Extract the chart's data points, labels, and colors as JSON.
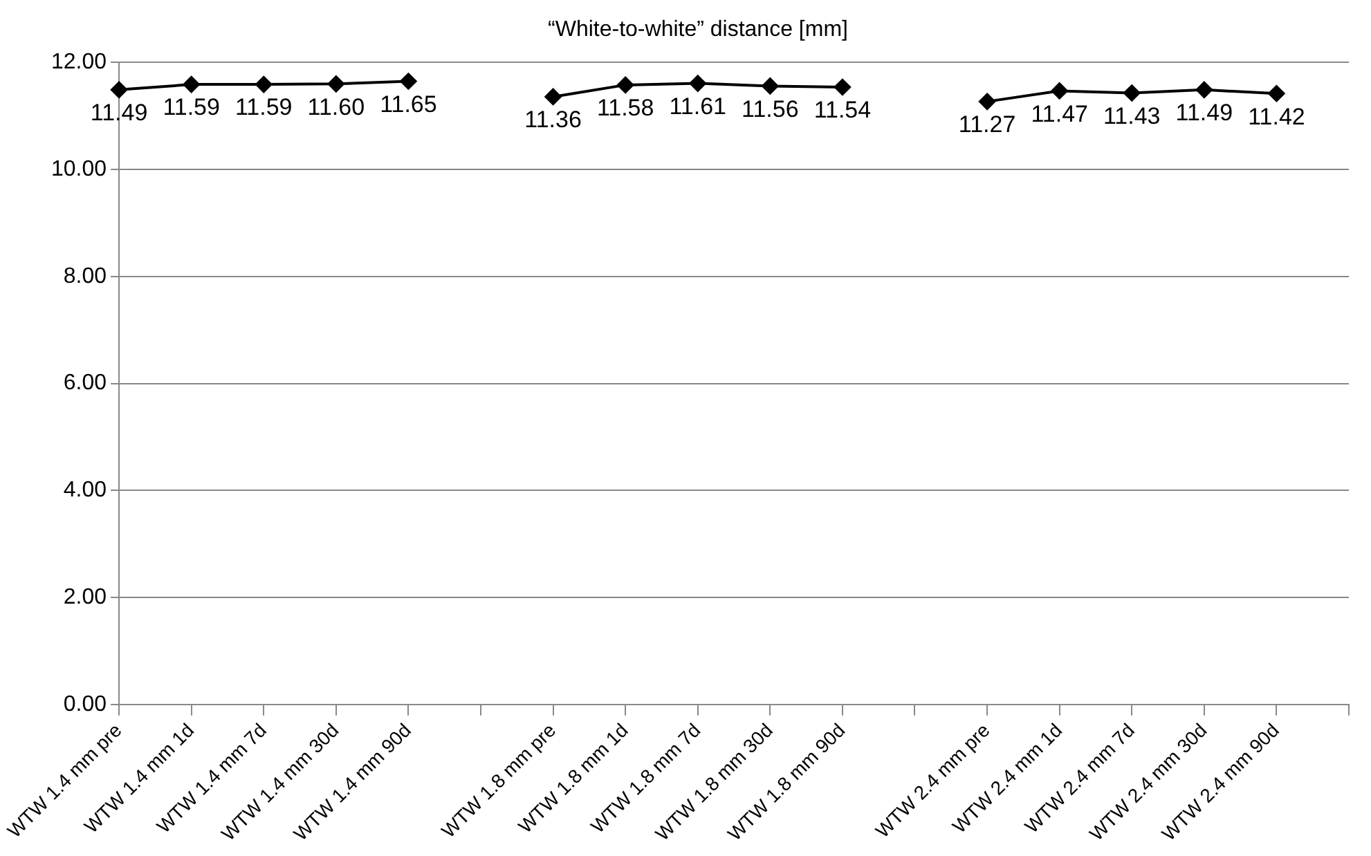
{
  "chart_data": {
    "type": "line",
    "title": "“White-to-white” distance [mm]",
    "categories": [
      "WTW 1.4 mm pre",
      "WTW 1.4 mm 1d",
      "WTW 1.4 mm 7d",
      "WTW 1.4 mm 30d",
      "WTW 1.4 mm 90d",
      null,
      "WTW 1.8 mm pre",
      "WTW 1.8 mm 1d",
      "WTW 1.8 mm 7d",
      "WTW 1.8 mm 30d",
      "WTW 1.8 mm 90d",
      null,
      "WTW 2.4 mm pre",
      "WTW 2.4 mm 1d",
      "WTW 2.4 mm 7d",
      "WTW 2.4 mm 30d",
      "WTW 2.4 mm 90d",
      null
    ],
    "series": [
      {
        "color": "#000000",
        "values": [
          11.49,
          11.59,
          11.59,
          11.6,
          11.65,
          null,
          11.36,
          11.58,
          11.61,
          11.56,
          11.54,
          null,
          11.27,
          11.47,
          11.43,
          11.49,
          11.42,
          null
        ],
        "value_labels": [
          "11.49",
          "11.59",
          "11.59",
          "11.60",
          "11.65",
          null,
          "11.36",
          "11.58",
          "11.61",
          "11.56",
          "11.54",
          null,
          "11.27",
          "11.47",
          "11.43",
          "11.49",
          "11.42",
          null
        ]
      }
    ],
    "ylim": [
      0,
      12
    ],
    "yticks": [
      {
        "value": 0,
        "label": "0.00"
      },
      {
        "value": 2,
        "label": "2.00"
      },
      {
        "value": 4,
        "label": "4.00"
      },
      {
        "value": 6,
        "label": "6.00"
      },
      {
        "value": 8,
        "label": "8.00"
      },
      {
        "value": 10,
        "label": "10.00"
      },
      {
        "value": 12,
        "label": "12.00"
      }
    ],
    "grid": "y",
    "marker": "diamond",
    "line_style": "solid"
  }
}
